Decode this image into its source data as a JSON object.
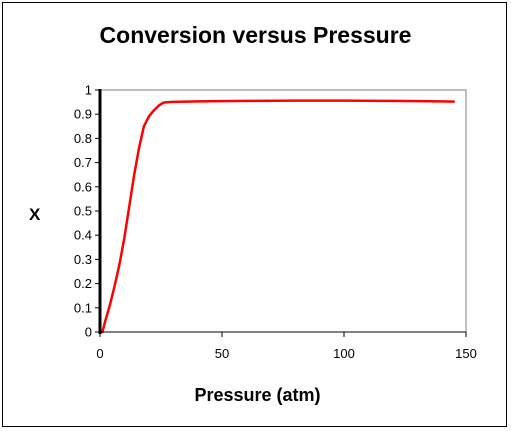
{
  "chart_data": {
    "type": "line",
    "title": "Conversion versus Pressure",
    "xlabel": "Pressure (atm)",
    "ylabel": "X",
    "xlim": [
      0,
      150
    ],
    "ylim": [
      0,
      1
    ],
    "x_ticks": [
      0,
      50,
      100,
      150
    ],
    "x_tick_labels": [
      "0",
      "50",
      "100",
      "150"
    ],
    "y_ticks": [
      0,
      0.1,
      0.2,
      0.3,
      0.4,
      0.5,
      0.6,
      0.7,
      0.8,
      0.9,
      1
    ],
    "y_tick_labels": [
      "0",
      "0.1",
      "0.2",
      "0.3",
      "0.4",
      "0.5",
      "0.6",
      "0.7",
      "0.8",
      "0.9",
      "1"
    ],
    "grid": false,
    "series": [
      {
        "color": "#ff0000",
        "x": [
          1,
          2,
          4,
          6,
          8,
          10,
          12,
          14,
          16,
          18,
          20,
          22,
          24,
          26,
          28,
          30,
          40,
          60,
          80,
          100,
          120,
          140,
          145
        ],
        "y": [
          0.0,
          0.04,
          0.11,
          0.19,
          0.28,
          0.39,
          0.52,
          0.65,
          0.76,
          0.85,
          0.89,
          0.915,
          0.935,
          0.948,
          0.95,
          0.951,
          0.953,
          0.955,
          0.956,
          0.956,
          0.955,
          0.953,
          0.952
        ]
      }
    ]
  }
}
